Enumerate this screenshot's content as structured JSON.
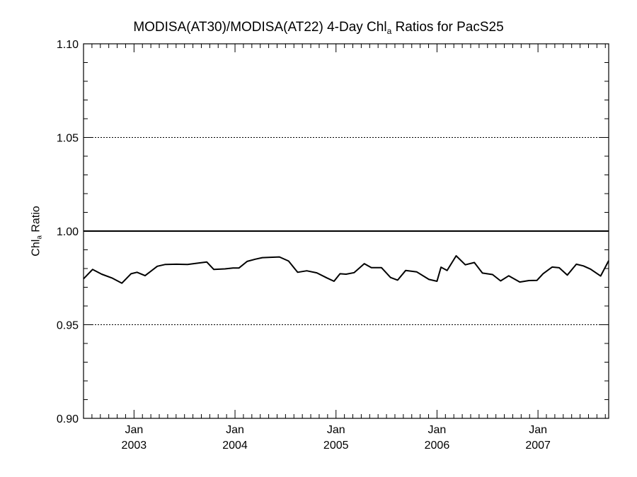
{
  "chart_data": {
    "type": "line",
    "title": "MODISA(AT30)/MODISA(AT22) 4-Day Chl",
    "title_subscript": "a",
    "title_suffix": " Ratios for PacS25",
    "ylabel": "Chl",
    "ylabel_subscript": "a",
    "ylabel_suffix": " Ratio",
    "xlabel": "",
    "ylim": [
      0.9,
      1.1
    ],
    "xlim": [
      2002.5,
      2007.7
    ],
    "yticks": [
      {
        "value": 0.9,
        "label": "0.90"
      },
      {
        "value": 0.95,
        "label": "0.95"
      },
      {
        "value": 1.0,
        "label": "1.00"
      },
      {
        "value": 1.05,
        "label": "1.05"
      },
      {
        "value": 1.1,
        "label": "1.10"
      }
    ],
    "xticks": [
      {
        "value": 2003.0,
        "label": "Jan",
        "label2": "2003"
      },
      {
        "value": 2004.0,
        "label": "Jan",
        "label2": "2004"
      },
      {
        "value": 2005.0,
        "label": "Jan",
        "label2": "2005"
      },
      {
        "value": 2006.0,
        "label": "Jan",
        "label2": "2006"
      },
      {
        "value": 2007.0,
        "label": "Jan",
        "label2": "2007"
      }
    ],
    "gridlines": [
      0.95,
      1.05
    ],
    "reference_line": 1.0,
    "series": [
      {
        "x": [
          2002.5,
          2002.59,
          2002.68,
          2002.78,
          2002.88,
          2002.97,
          2003.03,
          2003.11,
          2003.23,
          2003.31,
          2003.42,
          2003.53,
          2003.61,
          2003.72,
          2003.79,
          2003.9,
          2003.98,
          2004.04,
          2004.12,
          2004.2,
          2004.27,
          2004.35,
          2004.44,
          2004.53,
          2004.62,
          2004.71,
          2004.81,
          2004.91,
          2004.98,
          2005.04,
          2005.1,
          2005.18,
          2005.28,
          2005.35,
          2005.45,
          2005.54,
          2005.61,
          2005.69,
          2005.8,
          2005.92,
          2006.0,
          2006.04,
          2006.1,
          2006.19,
          2006.28,
          2006.37,
          2006.45,
          2006.55,
          2006.63,
          2006.71,
          2006.82,
          2006.91,
          2006.99,
          2007.05,
          2007.14,
          2007.21,
          2007.29,
          2007.38,
          2007.45,
          2007.52,
          2007.62,
          2007.7
        ],
        "y": [
          0.9745,
          0.9795,
          0.977,
          0.975,
          0.9722,
          0.9772,
          0.978,
          0.9762,
          0.9812,
          0.9822,
          0.9823,
          0.9822,
          0.9827,
          0.9835,
          0.9795,
          0.9798,
          0.9803,
          0.9803,
          0.9838,
          0.985,
          0.9858,
          0.986,
          0.9862,
          0.984,
          0.978,
          0.9788,
          0.9777,
          0.975,
          0.9732,
          0.9772,
          0.977,
          0.9778,
          0.9826,
          0.9805,
          0.9805,
          0.9752,
          0.9738,
          0.979,
          0.9782,
          0.9742,
          0.9732,
          0.9807,
          0.979,
          0.9868,
          0.982,
          0.9832,
          0.9776,
          0.9768,
          0.9734,
          0.9761,
          0.9728,
          0.9736,
          0.9737,
          0.9772,
          0.9808,
          0.9804,
          0.9765,
          0.9823,
          0.9814,
          0.9797,
          0.976,
          0.9842
        ]
      }
    ]
  }
}
